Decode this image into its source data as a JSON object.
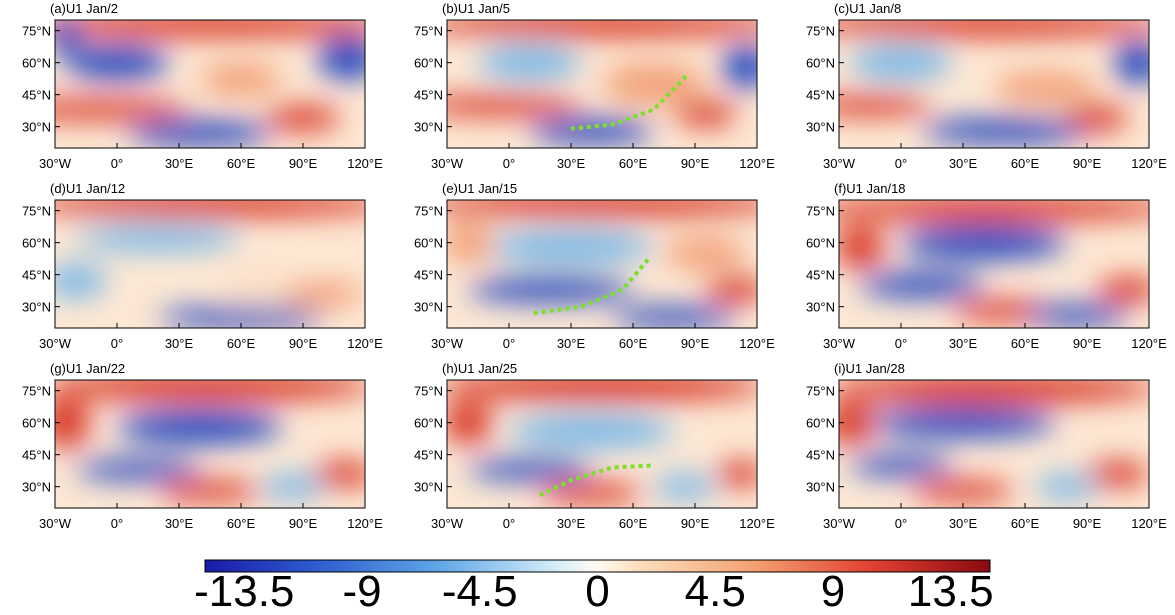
{
  "panels": [
    {
      "title": "(a)U1 Jan/2"
    },
    {
      "title": "(b)U1 Jan/5"
    },
    {
      "title": "(c)U1 Jan/8"
    },
    {
      "title": "(d)U1 Jan/12"
    },
    {
      "title": "(e)U1 Jan/15"
    },
    {
      "title": "(f)U1 Jan/18"
    },
    {
      "title": "(g)U1 Jan/22"
    },
    {
      "title": "(h)U1 Jan/25"
    },
    {
      "title": "(i)U1 Jan/28"
    }
  ],
  "xlim": [
    -30,
    120
  ],
  "ylim": [
    20,
    80
  ],
  "xticks": [
    {
      "value": -30,
      "label": "30°W"
    },
    {
      "value": 0,
      "label": "0°"
    },
    {
      "value": 30,
      "label": "30°E"
    },
    {
      "value": 60,
      "label": "60°E"
    },
    {
      "value": 90,
      "label": "90°E"
    },
    {
      "value": 120,
      "label": "120°E"
    }
  ],
  "yticks": [
    {
      "value": 75,
      "label": "75°N"
    },
    {
      "value": 60,
      "label": "60°N"
    },
    {
      "value": 45,
      "label": "45°N"
    },
    {
      "value": 30,
      "label": "30°N"
    }
  ],
  "colorbar": {
    "lim": [
      -15,
      15
    ],
    "ticks": [
      -13.5,
      -9,
      -4.5,
      0,
      4.5,
      9,
      13.5
    ]
  }
}
